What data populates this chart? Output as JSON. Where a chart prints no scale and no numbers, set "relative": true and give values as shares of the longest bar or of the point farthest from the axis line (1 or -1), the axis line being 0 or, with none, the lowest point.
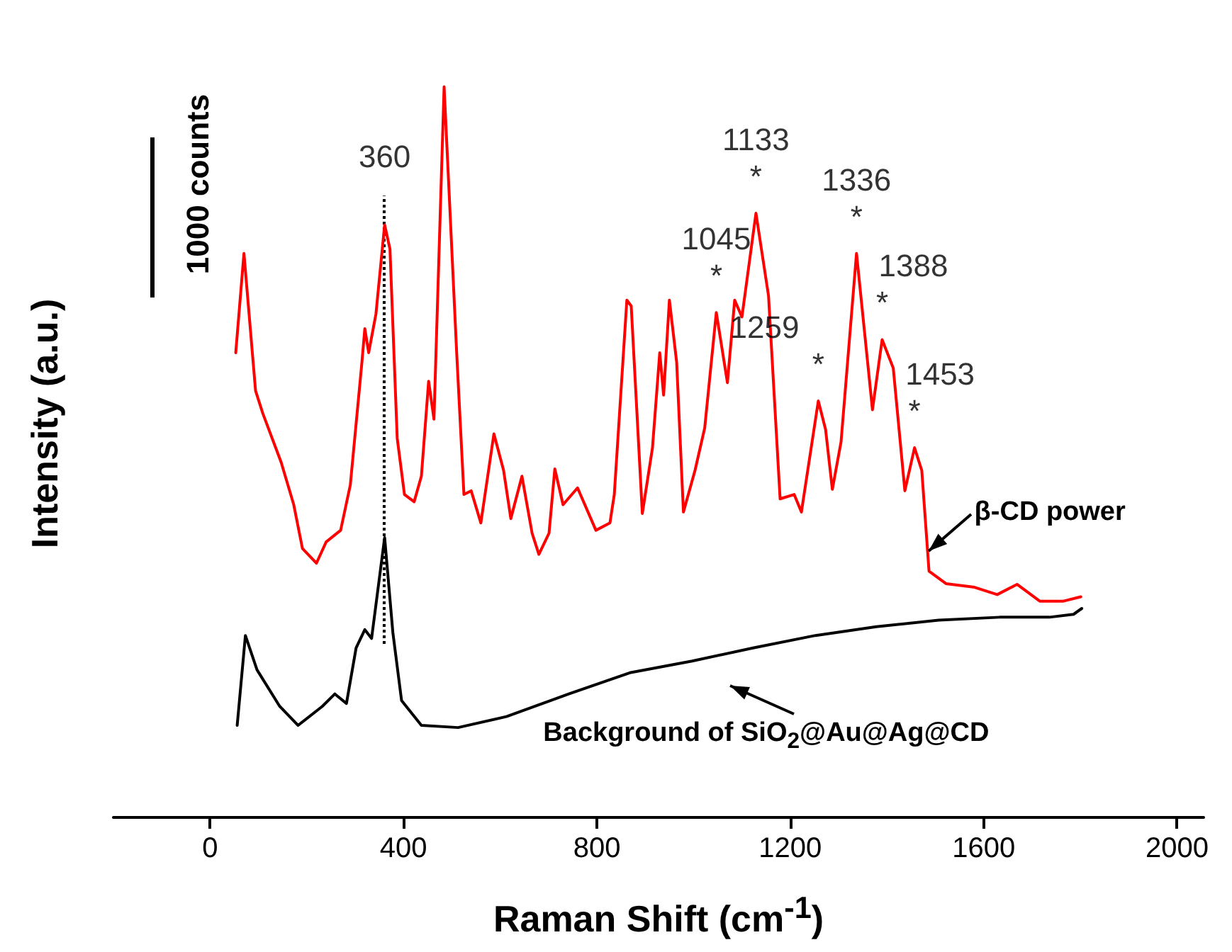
{
  "chart_data": {
    "type": "line",
    "relative": true,
    "xlabel": "Raman Shift (cm$^{-1}$)",
    "ylabel": "Intensity (a.u.)",
    "xlim": [
      -200,
      2055
    ],
    "xticks": [
      0,
      400,
      800,
      1200,
      1600,
      2000
    ],
    "grid": false,
    "marker": "none",
    "line_style": "solid",
    "series": [
      {
        "name": "β-CD power",
        "color": "#ff0000",
        "x": [
          53,
          70,
          94,
          109,
          147,
          173,
          191,
          220,
          240,
          270,
          290,
          314,
          320,
          328,
          343,
          361,
          372,
          387,
          402,
          422,
          437,
          452,
          463,
          484,
          510,
          525,
          540,
          560,
          587,
          607,
          622,
          645,
          666,
          680,
          701,
          713,
          730,
          760,
          798,
          827,
          836,
          862,
          871,
          894,
          915,
          930,
          938,
          950,
          965,
          979,
          1003,
          1023,
          1047,
          1070,
          1085,
          1100,
          1129,
          1155,
          1179,
          1208,
          1223,
          1258,
          1273,
          1287,
          1305,
          1337,
          1370,
          1390,
          1413,
          1437,
          1457,
          1472,
          1487,
          1522,
          1581,
          1628,
          1669,
          1716,
          1765,
          1801
        ],
        "values": [
          0.636,
          0.772,
          0.584,
          0.553,
          0.486,
          0.428,
          0.368,
          0.348,
          0.377,
          0.393,
          0.455,
          0.623,
          0.669,
          0.636,
          0.689,
          0.811,
          0.778,
          0.519,
          0.442,
          0.432,
          0.467,
          0.597,
          0.545,
          1.0,
          0.636,
          0.442,
          0.447,
          0.403,
          0.525,
          0.475,
          0.409,
          0.467,
          0.389,
          0.36,
          0.389,
          0.477,
          0.428,
          0.451,
          0.393,
          0.403,
          0.442,
          0.708,
          0.7,
          0.416,
          0.506,
          0.636,
          0.578,
          0.708,
          0.623,
          0.418,
          0.475,
          0.533,
          0.691,
          0.595,
          0.708,
          0.685,
          0.827,
          0.714,
          0.436,
          0.442,
          0.418,
          0.57,
          0.531,
          0.449,
          0.514,
          0.772,
          0.558,
          0.654,
          0.615,
          0.447,
          0.506,
          0.475,
          0.337,
          0.32,
          0.315,
          0.305,
          0.319,
          0.296,
          0.296,
          0.302
        ]
      },
      {
        "name": "Background of SiO$_{2}$@Au@Ag@CD",
        "color": "#000000",
        "x": [
          56,
          73,
          97,
          144,
          182,
          232,
          258,
          282,
          302,
          320,
          334,
          361,
          378,
          396,
          437,
          513,
          613,
          742,
          868,
          997,
          1123,
          1252,
          1378,
          1507,
          1633,
          1736,
          1786,
          1803
        ],
        "values": [
          0.126,
          0.249,
          0.202,
          0.152,
          0.126,
          0.152,
          0.169,
          0.156,
          0.232,
          0.257,
          0.245,
          0.383,
          0.253,
          0.16,
          0.126,
          0.123,
          0.138,
          0.169,
          0.198,
          0.214,
          0.232,
          0.249,
          0.261,
          0.27,
          0.274,
          0.274,
          0.278,
          0.286
        ]
      }
    ],
    "ref_lines": [
      {
        "axis": "x",
        "value": 360,
        "line_style": "dotted",
        "color": "#000000"
      }
    ],
    "annotations": [
      "1000 counts",
      {
        "text": "360",
        "x": 361,
        "y": 0.811
      },
      {
        "text": "*",
        "x": 1047,
        "y": 0.691
      },
      {
        "text": "1045",
        "x": 1047,
        "y": 0.691
      },
      {
        "text": "*",
        "x": 1129,
        "y": 0.827
      },
      {
        "text": "1133",
        "x": 1129,
        "y": 0.827
      },
      {
        "text": "*",
        "x": 1258,
        "y": 0.57
      },
      {
        "text": "1259",
        "x": 1258,
        "y": 0.57
      },
      {
        "text": "*",
        "x": 1337,
        "y": 0.772
      },
      {
        "text": "1336",
        "x": 1337,
        "y": 0.772
      },
      {
        "text": "*",
        "x": 1390,
        "y": 0.654
      },
      {
        "text": "1388",
        "x": 1390,
        "y": 0.654
      },
      {
        "text": "*",
        "x": 1457,
        "y": 0.506
      },
      {
        "text": "1453",
        "x": 1457,
        "y": 0.506
      }
    ]
  }
}
